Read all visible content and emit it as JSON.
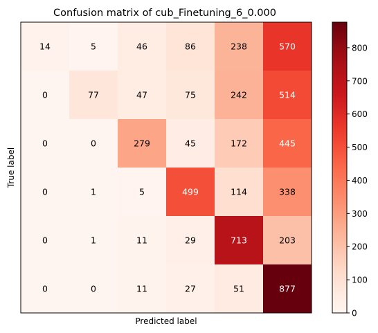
{
  "chart_data": {
    "type": "heatmap",
    "title": "Confusion matrix of cub_Finetuning_6_0.000",
    "xlabel": "Predicted label",
    "ylabel": "True label",
    "matrix": [
      [
        14,
        5,
        46,
        86,
        238,
        570
      ],
      [
        0,
        77,
        47,
        75,
        242,
        514
      ],
      [
        0,
        0,
        279,
        45,
        172,
        445
      ],
      [
        0,
        1,
        5,
        499,
        114,
        338
      ],
      [
        0,
        1,
        11,
        29,
        713,
        203
      ],
      [
        0,
        0,
        11,
        27,
        51,
        877
      ]
    ],
    "colormap": "Reds",
    "color_range": [
      0,
      877
    ],
    "colorbar_ticks": [
      0,
      100,
      200,
      300,
      400,
      500,
      600,
      700,
      800
    ],
    "x_ticks_shown": false,
    "y_ticks_shown": false,
    "grid": false
  }
}
